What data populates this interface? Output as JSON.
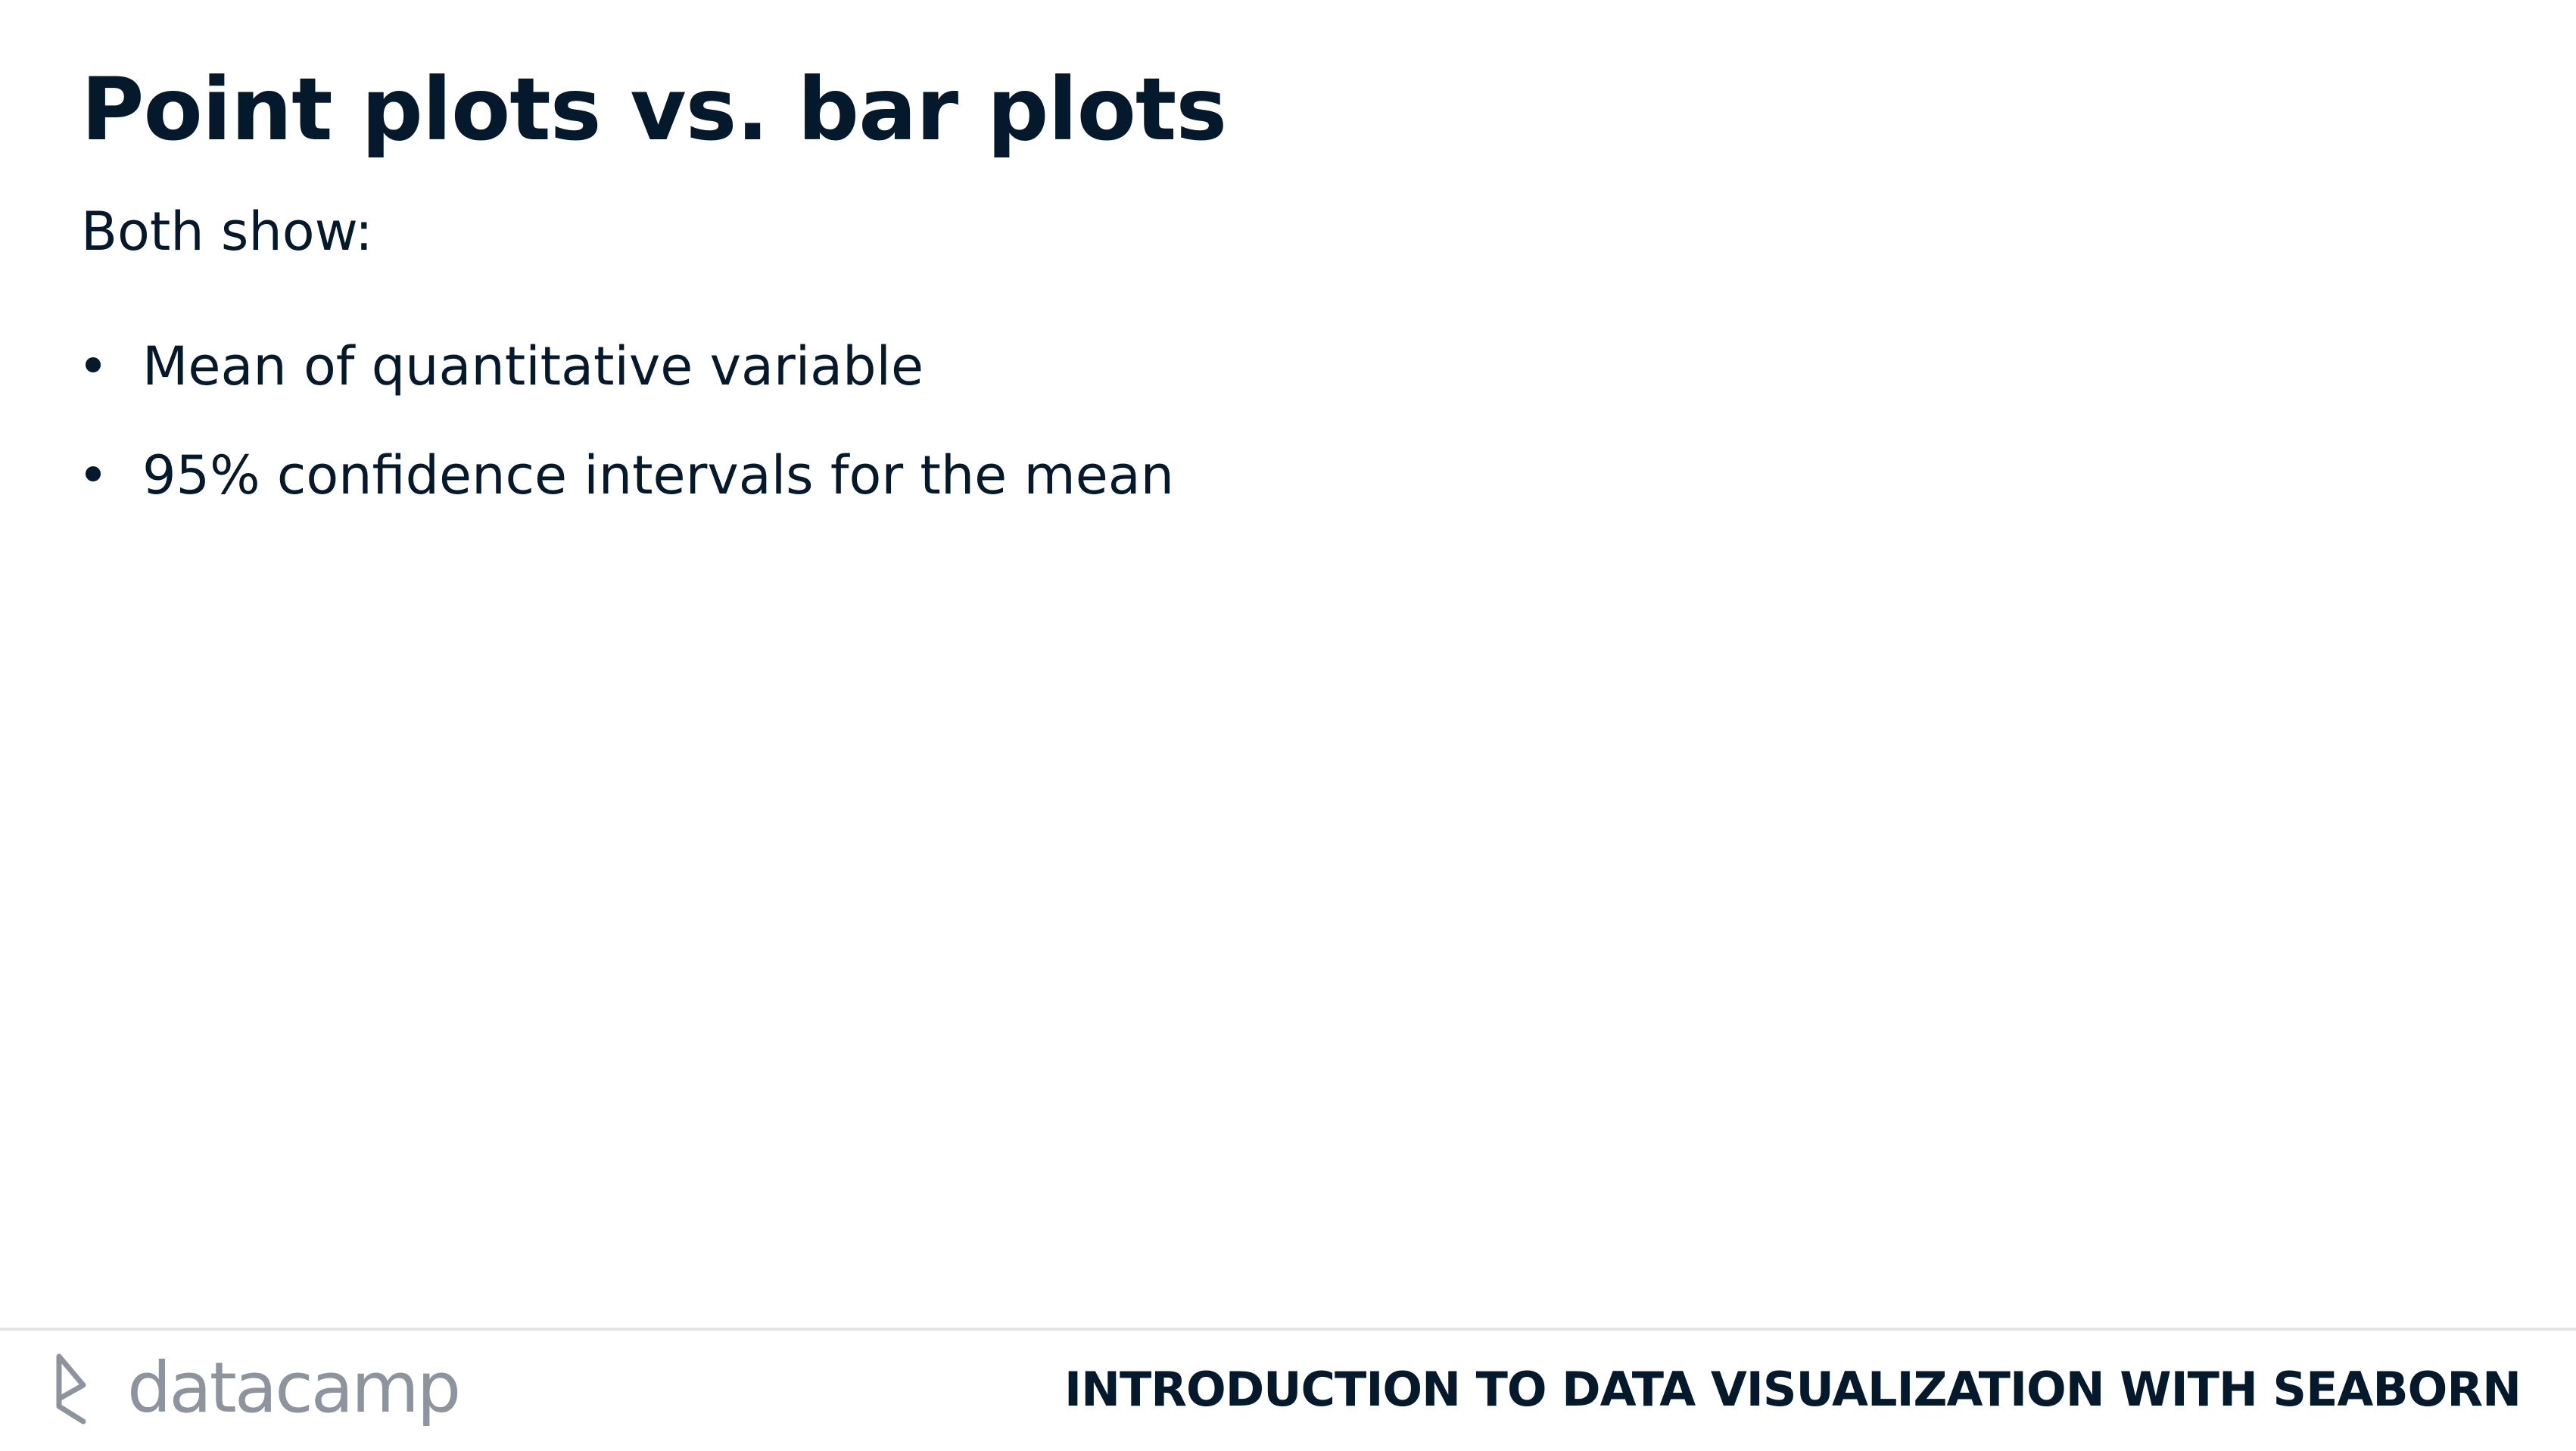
{
  "slide": {
    "title": "Point plots vs. bar plots",
    "intro": "Both show:",
    "bullets": [
      "Mean of quantitative variable",
      "95% confidence intervals for the mean"
    ]
  },
  "footer": {
    "logo_text": "datacamp",
    "logo_icon": "datacamp-logo-icon",
    "course_title": "INTRODUCTION TO DATA VISUALIZATION WITH SEABORN"
  },
  "colors": {
    "text": "#05192d",
    "logo": "#8d949d",
    "divider": "#e4e4e4",
    "background": "#ffffff"
  }
}
